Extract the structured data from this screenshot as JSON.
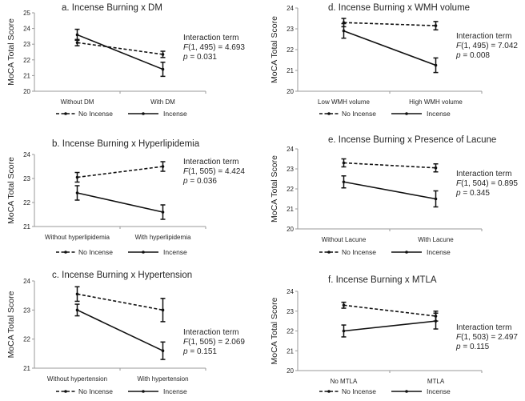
{
  "chart_data": [
    {
      "type": "line",
      "title": "a. Incense Burning x DM",
      "ylabel": "MoCA Total Score",
      "ylim": [
        20,
        25
      ],
      "yticks": [
        20,
        21,
        22,
        23,
        24,
        25
      ],
      "categories": [
        "Without DM",
        "With DM"
      ],
      "series": [
        {
          "name": "No Incense",
          "style": "dashed",
          "values": [
            23.1,
            22.35
          ],
          "errors": [
            0.2,
            0.2
          ]
        },
        {
          "name": "Incense",
          "style": "solid",
          "values": [
            23.6,
            21.4
          ],
          "errors": [
            0.35,
            0.45
          ]
        }
      ],
      "annotation": {
        "label": "Interaction term",
        "f_stat": "F(1, 495) = 4.693",
        "p_value": "p = 0.031"
      }
    },
    {
      "type": "line",
      "title": "d. Incense Burning x WMH volume",
      "ylabel": "MoCA Total Score",
      "ylim": [
        20,
        24
      ],
      "yticks": [
        20,
        21,
        22,
        23,
        24
      ],
      "categories": [
        "Low WMH volume",
        "High WMH volume"
      ],
      "series": [
        {
          "name": "No Incense",
          "style": "dashed",
          "values": [
            23.3,
            23.15
          ],
          "errors": [
            0.2,
            0.2
          ]
        },
        {
          "name": "Incense",
          "style": "solid",
          "values": [
            22.9,
            21.25
          ],
          "errors": [
            0.35,
            0.35
          ]
        }
      ],
      "annotation": {
        "label": "Interaction term",
        "f_stat": "F(1, 495) = 7.042",
        "p_value": "p = 0.008"
      }
    },
    {
      "type": "line",
      "title": "b. Incense Burning x Hyperlipidemia",
      "ylabel": "MoCA Total Score",
      "ylim": [
        21,
        24
      ],
      "yticks": [
        21,
        22,
        23,
        24
      ],
      "categories": [
        "Without hyperlipidemia",
        "With hyperlipidemia"
      ],
      "series": [
        {
          "name": "No Incense",
          "style": "dashed",
          "values": [
            23.05,
            23.5
          ],
          "errors": [
            0.2,
            0.2
          ]
        },
        {
          "name": "Incense",
          "style": "solid",
          "values": [
            22.4,
            21.6
          ],
          "errors": [
            0.3,
            0.3
          ]
        }
      ],
      "annotation": {
        "label": "Interaction term",
        "f_stat": "F(1, 505) = 4.424",
        "p_value": "p = 0.036"
      }
    },
    {
      "type": "line",
      "title": "e. Incense Burning x Presence of Lacune",
      "ylabel": "MoCA Total Score",
      "ylim": [
        20,
        24
      ],
      "yticks": [
        20,
        21,
        22,
        23,
        24
      ],
      "categories": [
        "Without Lacune",
        "With Lacune"
      ],
      "series": [
        {
          "name": "No Incense",
          "style": "dashed",
          "values": [
            23.3,
            23.05
          ],
          "errors": [
            0.2,
            0.2
          ]
        },
        {
          "name": "Incense",
          "style": "solid",
          "values": [
            22.35,
            21.5
          ],
          "errors": [
            0.3,
            0.4
          ]
        }
      ],
      "annotation": {
        "label": "Interaction term",
        "f_stat": "F(1, 504) = 0.895",
        "p_value": "p = 0.345"
      }
    },
    {
      "type": "line",
      "title": "c. Incense Burning x Hypertension",
      "ylabel": "MoCA Total Score",
      "ylim": [
        21,
        24
      ],
      "yticks": [
        21,
        22,
        23,
        24
      ],
      "categories": [
        "Without hypertension",
        "With hypertension"
      ],
      "series": [
        {
          "name": "No Incense",
          "style": "dashed",
          "values": [
            23.55,
            23.0
          ],
          "errors": [
            0.25,
            0.4
          ]
        },
        {
          "name": "Incense",
          "style": "solid",
          "values": [
            23.0,
            21.6
          ],
          "errors": [
            0.2,
            0.3
          ]
        }
      ],
      "annotation": {
        "label": "Interaction term",
        "f_stat": "F(1, 505) = 2.069",
        "p_value": "p = 0.151"
      }
    },
    {
      "type": "line",
      "title": "f. Incense Burning x MTLA",
      "ylabel": "MoCA Total Score",
      "ylim": [
        20,
        24
      ],
      "yticks": [
        20,
        21,
        22,
        23,
        24
      ],
      "categories": [
        "No MTLA",
        "MTLA"
      ],
      "series": [
        {
          "name": "No Incense",
          "style": "dashed",
          "values": [
            23.3,
            22.75
          ],
          "errors": [
            0.15,
            0.25
          ]
        },
        {
          "name": "Incense",
          "style": "solid",
          "values": [
            22.0,
            22.5
          ],
          "errors": [
            0.3,
            0.4
          ]
        }
      ],
      "annotation": {
        "label": "Interaction term",
        "f_stat": "F(1, 503) = 2.497",
        "p_value": "p = 0.115"
      }
    }
  ]
}
